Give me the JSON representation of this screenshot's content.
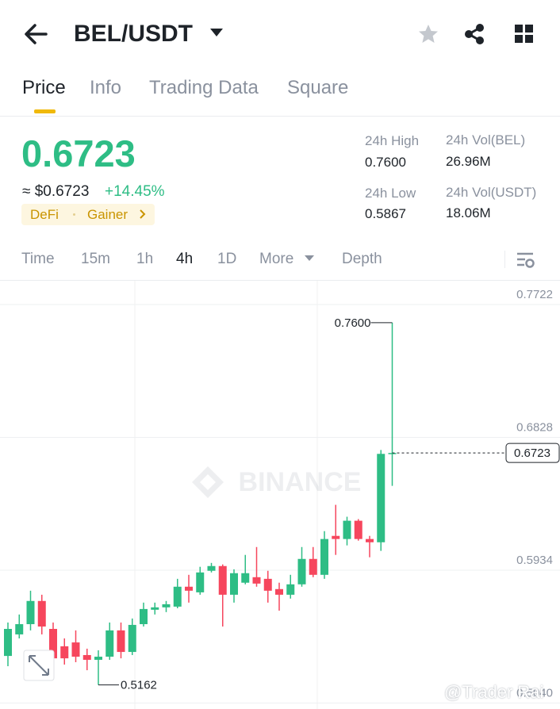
{
  "header": {
    "title": "BEL/USDT"
  },
  "tabs": [
    "Price",
    "Info",
    "Trading Data",
    "Square"
  ],
  "price": {
    "last": "0.6723",
    "usd": "≈ $0.6723",
    "change": "+14.45%",
    "tags": [
      "DeFi",
      "Gainer"
    ]
  },
  "stats": [
    {
      "label": "24h High",
      "value": "0.7600"
    },
    {
      "label": "24h Vol(BEL)",
      "value": "26.96M"
    },
    {
      "label": "24h Low",
      "value": "0.5867"
    },
    {
      "label": "24h Vol(USDT)",
      "value": "18.06M"
    }
  ],
  "timeframes": [
    "Time",
    "15m",
    "1h",
    "4h",
    "1D",
    "More",
    "Depth"
  ],
  "watermark": {
    "brand": "BINANCE",
    "author": "@Trader Rai"
  },
  "chart_data": {
    "type": "candlestick",
    "ylim": [
      0.5,
      0.7882
    ],
    "yticks": [
      0.7722,
      0.6828,
      0.5934,
      {
        "value": 0.504,
        "label": "0.5040"
      }
    ],
    "grid": true,
    "up_color": "#2ebd85",
    "down_color": "#f6465d",
    "last": 0.6723,
    "high_label": {
      "value": 0.76,
      "label": "0.7600"
    },
    "low_label": 0.5162,
    "open": [
      0.5357,
      0.5502,
      0.5571,
      0.5727,
      0.5539,
      0.5422,
      0.5448,
      0.5363,
      0.5331,
      0.5352,
      0.5529,
      0.5384,
      0.5571,
      0.5668,
      0.5684,
      0.5689,
      0.5823,
      0.5785,
      0.593,
      0.5962,
      0.5769,
      0.585,
      0.5887,
      0.5876,
      0.5807,
      0.5769,
      0.5839,
      0.601,
      0.5903,
      0.6165,
      0.6144,
      0.6267,
      0.6144,
      0.6122,
      0.6717
    ],
    "high": [
      0.5582,
      0.5636,
      0.5796,
      0.5769,
      0.5582,
      0.5475,
      0.5529,
      0.5406,
      0.5395,
      0.5582,
      0.5582,
      0.5609,
      0.5716,
      0.5716,
      0.5727,
      0.5876,
      0.5903,
      0.5957,
      0.5983,
      0.5973,
      0.594,
      0.6037,
      0.609,
      0.593,
      0.585,
      0.5903,
      0.609,
      0.609,
      0.6197,
      0.6374,
      0.6294,
      0.6278,
      0.6165,
      0.6743,
      0.76
    ],
    "low": [
      0.5288,
      0.5475,
      0.5529,
      0.5502,
      0.5261,
      0.5299,
      0.5315,
      0.5261,
      0.5162,
      0.5331,
      0.5341,
      0.5363,
      0.5555,
      0.5636,
      0.5652,
      0.5678,
      0.5716,
      0.5769,
      0.5919,
      0.5555,
      0.5716,
      0.5839,
      0.5823,
      0.5716,
      0.5662,
      0.5743,
      0.5823,
      0.5887,
      0.5876,
      0.6037,
      0.6101,
      0.6133,
      0.6021,
      0.6064,
      0.6502
    ],
    "close": [
      0.5539,
      0.5571,
      0.5727,
      0.5555,
      0.5341,
      0.5341,
      0.5352,
      0.5331,
      0.5352,
      0.5529,
      0.5384,
      0.5566,
      0.5673,
      0.5684,
      0.5705,
      0.5823,
      0.5796,
      0.5919,
      0.5962,
      0.5769,
      0.5914,
      0.5914,
      0.5844,
      0.5796,
      0.5769,
      0.5839,
      0.601,
      0.5903,
      0.6144,
      0.6144,
      0.6267,
      0.6144,
      0.6122,
      0.6717,
      0.6723
    ]
  }
}
